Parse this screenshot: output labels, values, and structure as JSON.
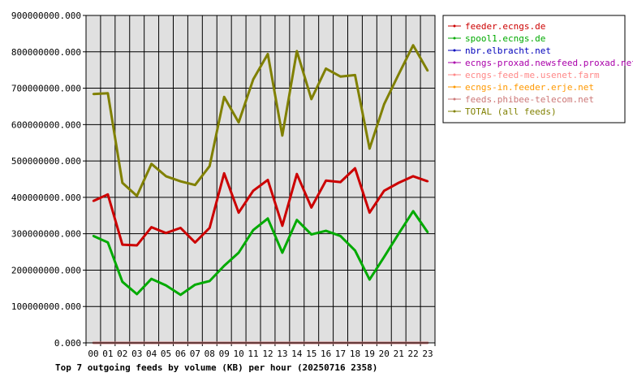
{
  "chart_data": {
    "type": "line",
    "title": "Top 7 outgoing feeds by volume (KB) per hour (20250716 2358)",
    "xlabel": "",
    "ylabel": "",
    "categories": [
      "00",
      "01",
      "02",
      "03",
      "04",
      "05",
      "06",
      "07",
      "08",
      "09",
      "10",
      "11",
      "12",
      "13",
      "14",
      "15",
      "16",
      "17",
      "18",
      "19",
      "20",
      "21",
      "22",
      "23"
    ],
    "ylim": [
      0,
      900000000
    ],
    "yticks": [
      0,
      100000000,
      200000000,
      300000000,
      400000000,
      500000000,
      600000000,
      700000000,
      800000000,
      900000000
    ],
    "ytick_labels": [
      "0.000",
      "100000000.000",
      "200000000.000",
      "300000000.000",
      "400000000.000",
      "500000000.000",
      "600000000.000",
      "700000000.000",
      "800000000.000",
      "900000000.000"
    ],
    "grid": true,
    "legend_position": "right",
    "series": [
      {
        "name": "feeder.ecngs.de",
        "color": "#cc0000",
        "values": [
          390000000,
          408000000,
          270000000,
          268000000,
          318000000,
          302000000,
          316000000,
          276000000,
          316000000,
          466000000,
          358000000,
          418000000,
          448000000,
          322000000,
          464000000,
          372000000,
          446000000,
          442000000,
          480000000,
          358000000,
          418000000,
          440000000,
          458000000,
          444000000
        ]
      },
      {
        "name": "spool1.ecngs.de",
        "color": "#00aa00",
        "values": [
          294000000,
          276000000,
          168000000,
          134000000,
          176000000,
          158000000,
          132000000,
          160000000,
          170000000,
          212000000,
          248000000,
          310000000,
          342000000,
          248000000,
          338000000,
          298000000,
          308000000,
          294000000,
          254000000,
          174000000,
          236000000,
          300000000,
          362000000,
          304000000
        ]
      },
      {
        "name": "nbr.elbracht.net",
        "color": "#0000bb",
        "values": [
          0,
          0,
          0,
          0,
          0,
          0,
          0,
          0,
          0,
          0,
          0,
          0,
          0,
          0,
          0,
          0,
          0,
          0,
          0,
          0,
          0,
          0,
          0,
          0
        ]
      },
      {
        "name": "ecngs-proxad.newsfeed.proxad.net",
        "color": "#aa00aa",
        "values": [
          0,
          0,
          0,
          0,
          0,
          0,
          0,
          0,
          0,
          0,
          0,
          0,
          0,
          0,
          0,
          0,
          0,
          0,
          0,
          0,
          0,
          0,
          0,
          0
        ]
      },
      {
        "name": "ecngs-feed-me.usenet.farm",
        "color": "#ff8888",
        "values": [
          0,
          0,
          0,
          0,
          0,
          0,
          0,
          0,
          0,
          0,
          0,
          0,
          0,
          0,
          0,
          0,
          0,
          0,
          0,
          0,
          0,
          0,
          0,
          0
        ]
      },
      {
        "name": "ecngs-in.feeder.erje.net",
        "color": "#ff9900",
        "values": [
          0,
          0,
          0,
          0,
          0,
          0,
          0,
          0,
          0,
          0,
          0,
          0,
          0,
          0,
          0,
          0,
          0,
          0,
          0,
          0,
          0,
          0,
          0,
          0
        ]
      },
      {
        "name": "feeds.phibee-telecom.net",
        "color": "#cc7777",
        "values": [
          0,
          0,
          0,
          0,
          0,
          0,
          0,
          0,
          0,
          0,
          0,
          0,
          0,
          0,
          0,
          0,
          0,
          0,
          0,
          0,
          0,
          0,
          0,
          0
        ]
      },
      {
        "name": "TOTAL (all feeds)",
        "color": "#808000",
        "values": [
          684000000,
          686000000,
          440000000,
          404000000,
          492000000,
          458000000,
          444000000,
          434000000,
          486000000,
          676000000,
          606000000,
          724000000,
          794000000,
          570000000,
          802000000,
          670000000,
          754000000,
          732000000,
          736000000,
          534000000,
          656000000,
          738000000,
          818000000,
          748000000
        ]
      }
    ]
  }
}
